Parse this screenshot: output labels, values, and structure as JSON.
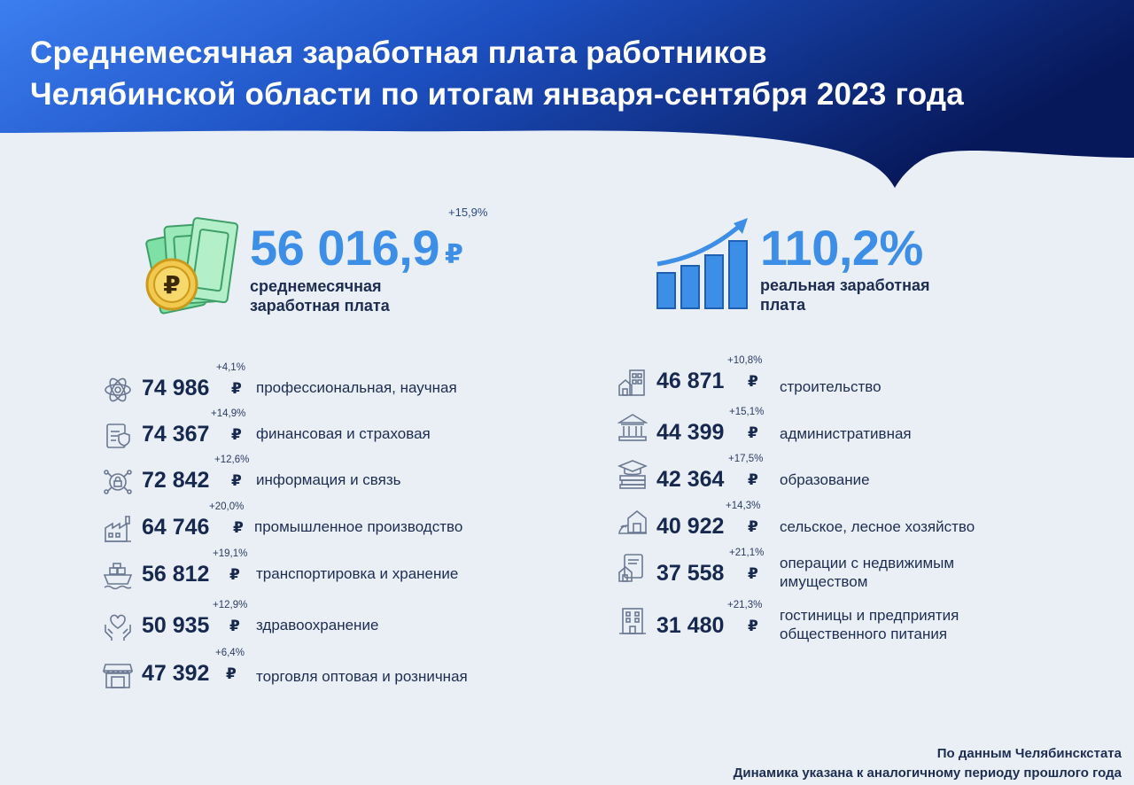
{
  "title": {
    "line1": "Среднемесячная заработная плата работников",
    "line2": "Челябинской области по итогам января-сентября 2023 года"
  },
  "colors": {
    "header_start": "#2f6fe6",
    "header_end": "#0a1f63",
    "accent": "#3d8ee6",
    "background": "#eaeff6"
  },
  "average_salary": {
    "value": "56 016,9",
    "currency": "₽",
    "change": "+15,9%",
    "label_line1": "среднемесячная",
    "label_line2": "заработная плата",
    "icon": "money-coin-icon"
  },
  "real_salary": {
    "value": "110,2%",
    "label_line1": "реальная заработная",
    "label_line2": "плата",
    "icon": "growth-chart-icon"
  },
  "left_sectors": [
    {
      "value": "74 986",
      "currency": "₽",
      "change": "+4,1%",
      "label": "профессиональная, научная",
      "icon": "atom-icon"
    },
    {
      "value": "74 367",
      "currency": "₽",
      "change": "+14,9%",
      "label": "финансовая и страховая",
      "icon": "document-shield-icon"
    },
    {
      "value": "72 842",
      "currency": "₽",
      "change": "+12,6%",
      "label": "информация и связь",
      "icon": "network-lock-icon"
    },
    {
      "value": "64 746",
      "currency": "₽",
      "change": "+20,0%",
      "label": "промышленное производство",
      "icon": "factory-icon"
    },
    {
      "value": "56 812",
      "currency": "₽",
      "change": "+19,1%",
      "label": "транспортировка и хранение",
      "icon": "cargo-ship-icon"
    },
    {
      "value": "50 935",
      "currency": "₽",
      "change": "+12,9%",
      "label": "здравоохранение",
      "icon": "hands-heart-icon"
    },
    {
      "value": "47 392",
      "currency": "₽",
      "change": "+6,4%",
      "label": "торговля оптовая и розничная",
      "icon": "shop-icon"
    }
  ],
  "right_sectors": [
    {
      "value": "46 871",
      "currency": "₽",
      "change": "+10,8%",
      "label_line1": "строительство",
      "label_line2": "",
      "icon": "buildings-icon"
    },
    {
      "value": "44 399",
      "currency": "₽",
      "change": "+15,1%",
      "label_line1": "административная",
      "label_line2": "",
      "icon": "government-building-icon"
    },
    {
      "value": "42 364",
      "currency": "₽",
      "change": "+17,5%",
      "label_line1": "образование",
      "label_line2": "",
      "icon": "graduation-books-icon"
    },
    {
      "value": "40 922",
      "currency": "₽",
      "change": "+14,3%",
      "label_line1": "сельское, лесное хозяйство",
      "label_line2": "",
      "icon": "farm-icon"
    },
    {
      "value": "37 558",
      "currency": "₽",
      "change": "+21,1%",
      "label_line1": "операции с недвижимым",
      "label_line2": "имуществом",
      "icon": "house-document-icon"
    },
    {
      "value": "31 480",
      "currency": "₽",
      "change": "+21,3%",
      "label_line1": "гостиницы и предприятия",
      "label_line2": "общественного питания",
      "icon": "hotel-icon"
    }
  ],
  "footer": {
    "source": "По данным Челябинскстата",
    "note": "Динамика указана к аналогичному периоду прошлого года"
  }
}
